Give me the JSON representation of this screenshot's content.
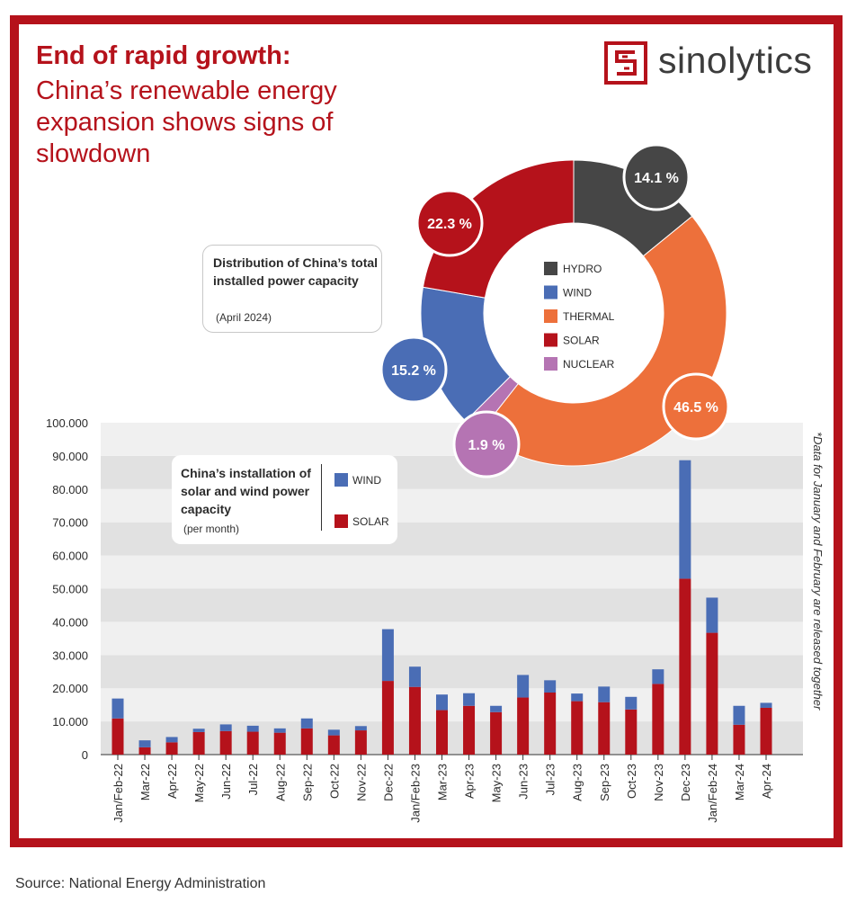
{
  "header": {
    "title_bold": "End of rapid growth:",
    "title_sub": "China’s renewable energy expansion shows signs of slowdown",
    "brand": "sinolytics"
  },
  "source": "Source: National Energy Administration",
  "note": "*Data for January and February are released together",
  "colors": {
    "brand_red": "#b5121b",
    "hydro": "#464646",
    "wind": "#4a6db5",
    "thermal": "#ed703b",
    "solar": "#b5121b",
    "nuclear": "#b574b3"
  },
  "donut_panel": {
    "title": "Distribution of China’s total installed power capacity",
    "subtitle": "(April 2024)"
  },
  "bar_panel": {
    "title": "China’s installation of solar and wind power capacity",
    "subtitle": "(per month)",
    "legend_wind": "WIND",
    "legend_solar": "SOLAR"
  },
  "chart_data": [
    {
      "type": "pie",
      "title": "Distribution of China’s total installed power capacity",
      "subtitle": "(April 2024)",
      "labels": [
        "HYDRO",
        "THERMAL",
        "NUCLEAR",
        "WIND",
        "SOLAR"
      ],
      "values": [
        14.1,
        46.5,
        1.9,
        15.2,
        22.3
      ],
      "value_labels": [
        "14.1 %",
        "46.5 %",
        "1.9 %",
        "15.2 %",
        "22.3 %"
      ],
      "legend_order": [
        "HYDRO",
        "WIND",
        "THERMAL",
        "SOLAR",
        "NUCLEAR"
      ],
      "colors": [
        "#464646",
        "#ed703b",
        "#b574b3",
        "#4a6db5",
        "#b5121b"
      ],
      "legend_placement": "center"
    },
    {
      "type": "bar",
      "stacked": true,
      "title": "China’s installation of solar and wind power capacity",
      "subtitle": "(per month)",
      "categories": [
        "Jan/Feb-22",
        "Mar-22",
        "Apr-22",
        "May-22",
        "Jun-22",
        "Jul-22",
        "Aug-22",
        "Sep-22",
        "Oct-22",
        "Nov-22",
        "Dec-22",
        "Jan/Feb-23",
        "Mar-23",
        "Apr-23",
        "May-23",
        "Jun-23",
        "Jul-23",
        "Aug-23",
        "Sep-23",
        "Oct-23",
        "Nov-23",
        "Dec-23",
        "Jan/Feb-24",
        "Mar-24",
        "Apr-24"
      ],
      "series": [
        {
          "name": "SOLAR",
          "color": "#b5121b",
          "values": [
            10900,
            2200,
            3700,
            6800,
            7100,
            6900,
            6600,
            7900,
            5800,
            7300,
            22200,
            20400,
            13400,
            14700,
            12800,
            17200,
            18700,
            16100,
            15800,
            13600,
            21300,
            53000,
            36700,
            9000,
            14100
          ]
        },
        {
          "name": "WIND",
          "color": "#4a6db5",
          "values": [
            6000,
            2100,
            1600,
            1000,
            2000,
            1800,
            1300,
            3000,
            1700,
            1300,
            15600,
            6100,
            4700,
            3800,
            1900,
            6800,
            3700,
            2300,
            4700,
            3800,
            4400,
            35700,
            10600,
            5700,
            1500
          ]
        }
      ],
      "yticks": [
        "0",
        "10.000",
        "20.000",
        "30.000",
        "40.000",
        "50.000",
        "60.000",
        "70.000",
        "80.000",
        "90.000",
        "100.000"
      ],
      "ylim": [
        0,
        100000
      ],
      "grid": "alternating bands",
      "legend_placement": "top-left"
    }
  ]
}
